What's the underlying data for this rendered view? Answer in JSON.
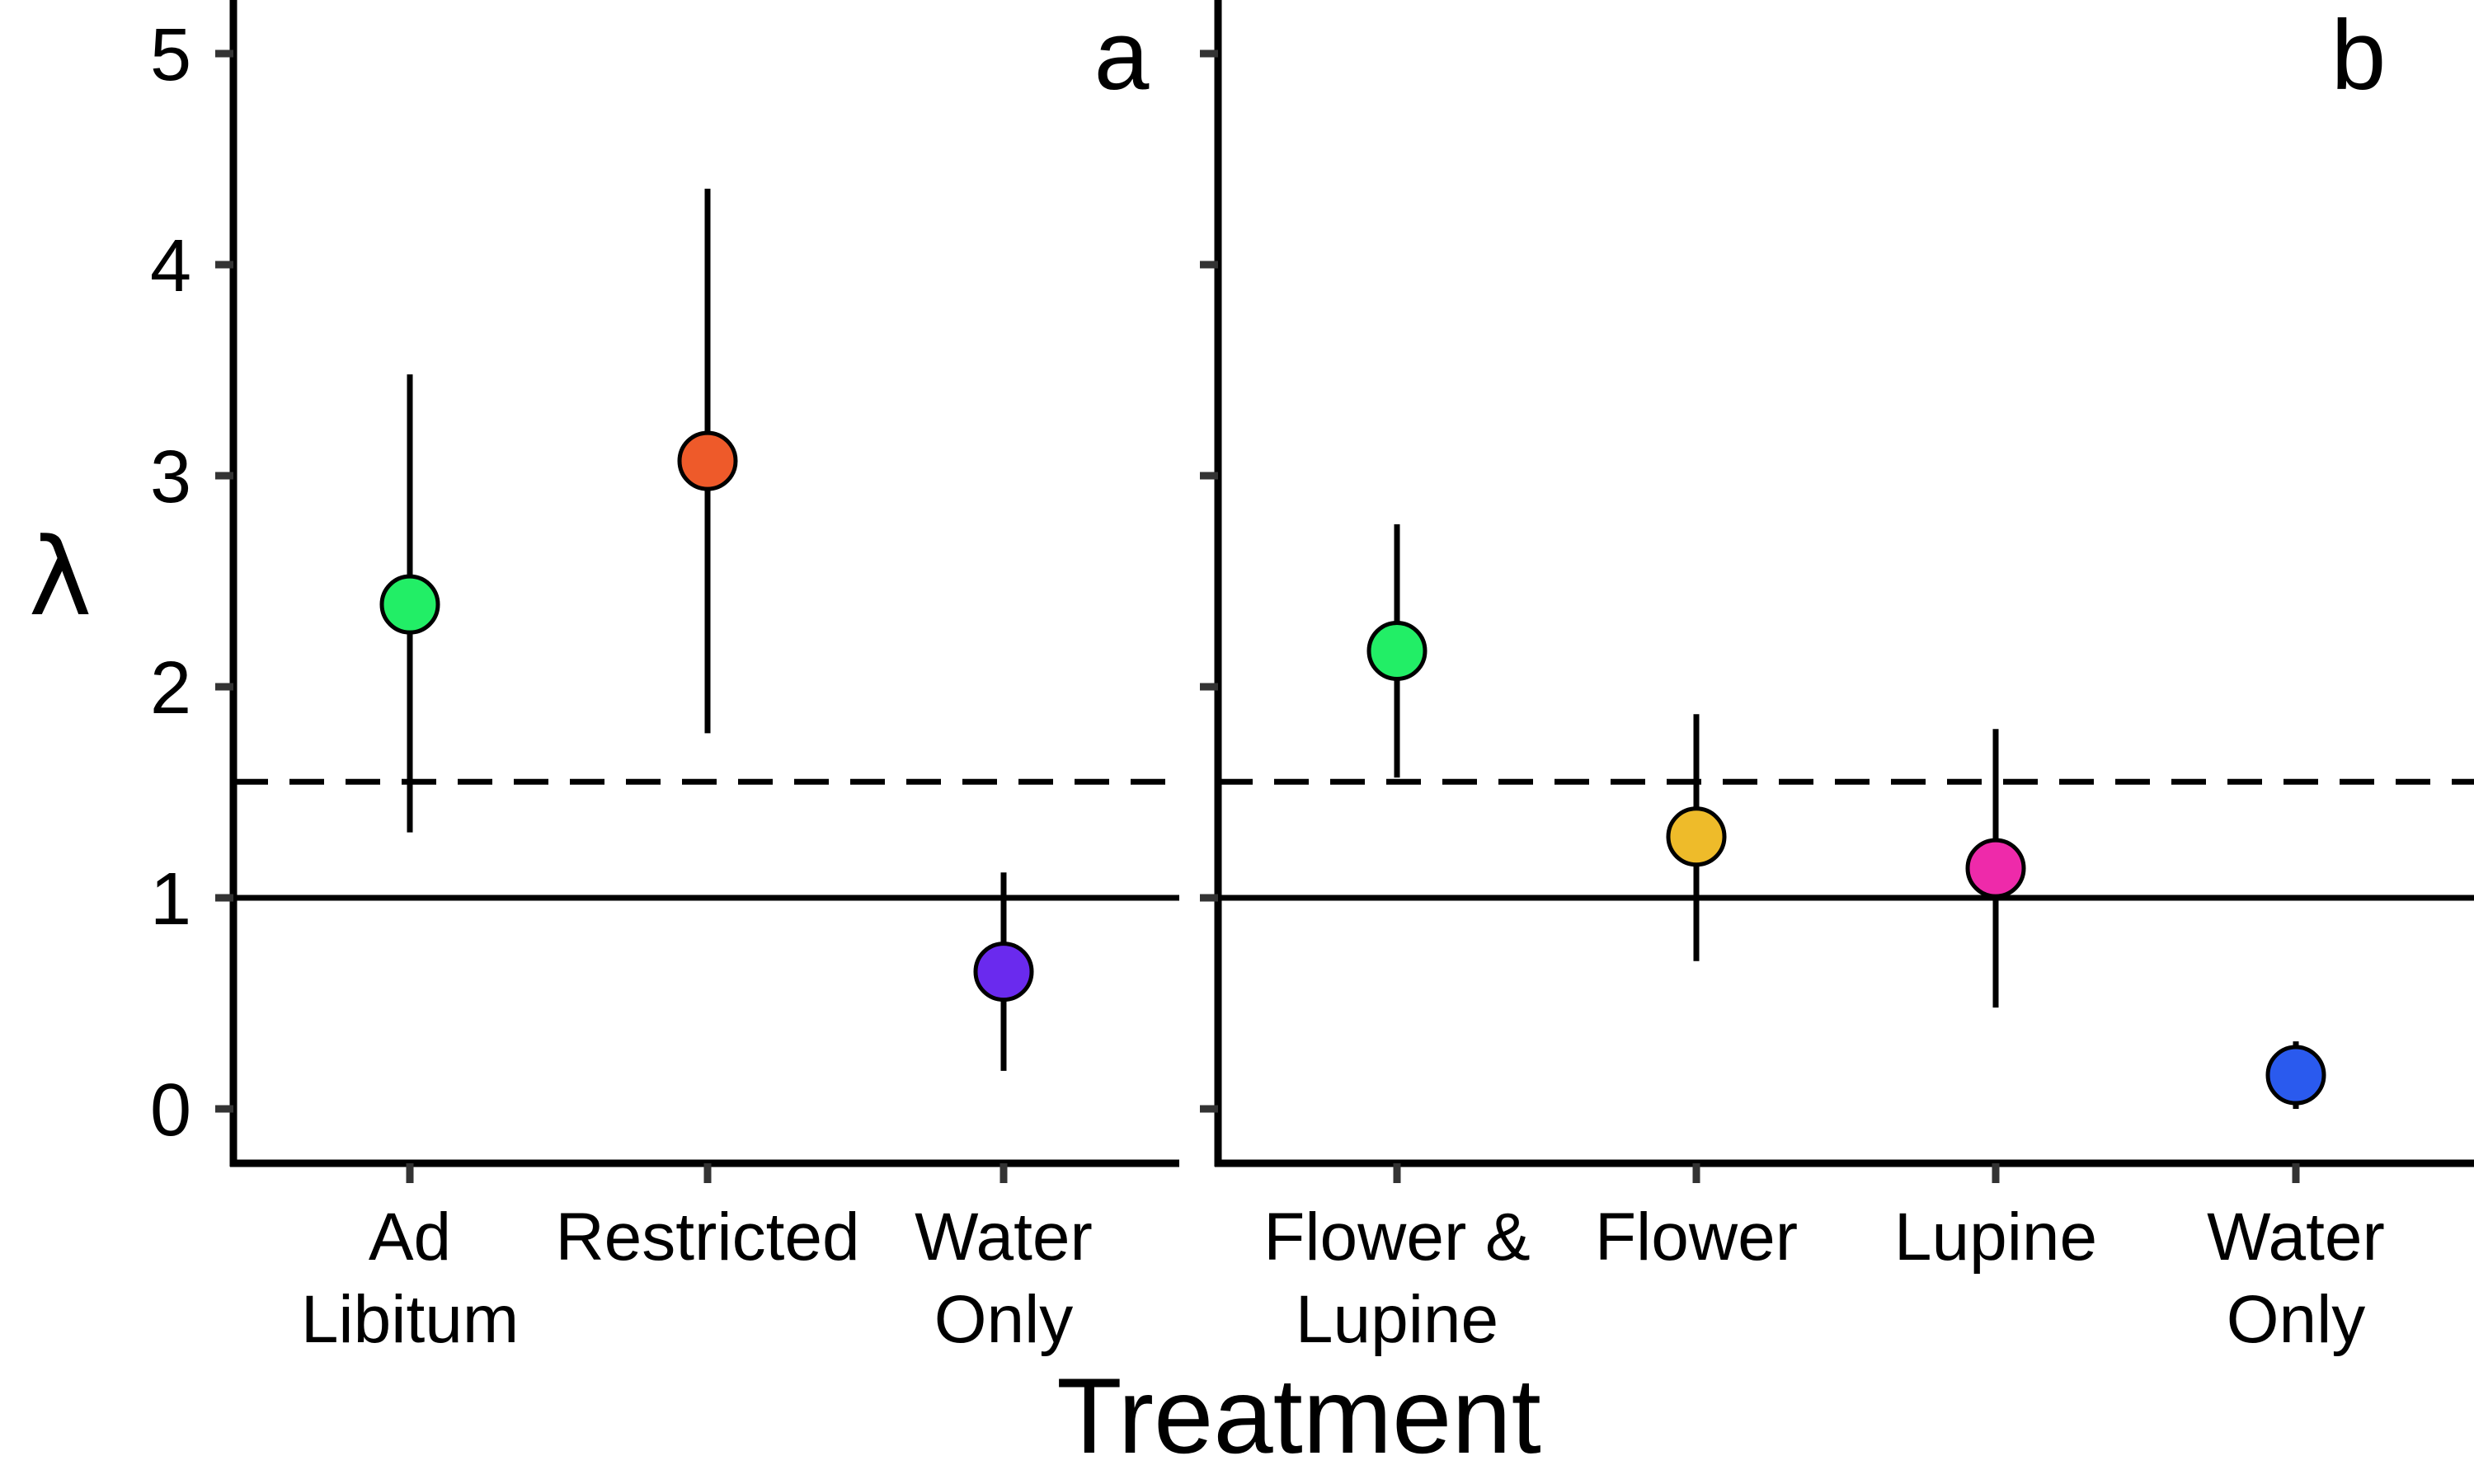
{
  "chart_data": {
    "type": "scatter",
    "xlabel": "Treatment",
    "ylabel": "λ",
    "ylim": [
      -0.25,
      5.25
    ],
    "yticks": [
      "0",
      "1",
      "2",
      "3",
      "4",
      "5"
    ],
    "grid": false,
    "legend": "none",
    "reference_lines": [
      {
        "y": 1.0,
        "style": "solid"
      },
      {
        "y": 1.55,
        "style": "dashed"
      }
    ],
    "panels": [
      {
        "label": "a",
        "categories": [
          {
            "lines": [
              "Ad",
              "Libitum"
            ]
          },
          {
            "lines": [
              "Restricted"
            ]
          },
          {
            "lines": [
              "Water",
              "Only"
            ]
          }
        ],
        "points": [
          {
            "y": 2.39,
            "lower": 1.31,
            "upper": 3.48,
            "color": "#22EE66"
          },
          {
            "y": 3.07,
            "lower": 1.78,
            "upper": 4.36,
            "color": "#EE5A2A"
          },
          {
            "y": 0.65,
            "lower": 0.18,
            "upper": 1.12,
            "color": "#6A2AEE"
          }
        ]
      },
      {
        "label": "b",
        "categories": [
          {
            "lines": [
              "Flower &",
              "Lupine"
            ]
          },
          {
            "lines": [
              "Flower"
            ]
          },
          {
            "lines": [
              "Lupine"
            ]
          },
          {
            "lines": [
              "Water",
              "Only"
            ]
          }
        ],
        "points": [
          {
            "y": 2.17,
            "lower": 1.57,
            "upper": 2.77,
            "color": "#22EE66"
          },
          {
            "y": 1.29,
            "lower": 0.7,
            "upper": 1.87,
            "color": "#EEBB2A"
          },
          {
            "y": 1.14,
            "lower": 0.48,
            "upper": 1.8,
            "color": "#EE2AAA"
          },
          {
            "y": 0.16,
            "lower": 0.0,
            "upper": 0.32,
            "color": "#2A5AEE"
          }
        ]
      }
    ]
  }
}
